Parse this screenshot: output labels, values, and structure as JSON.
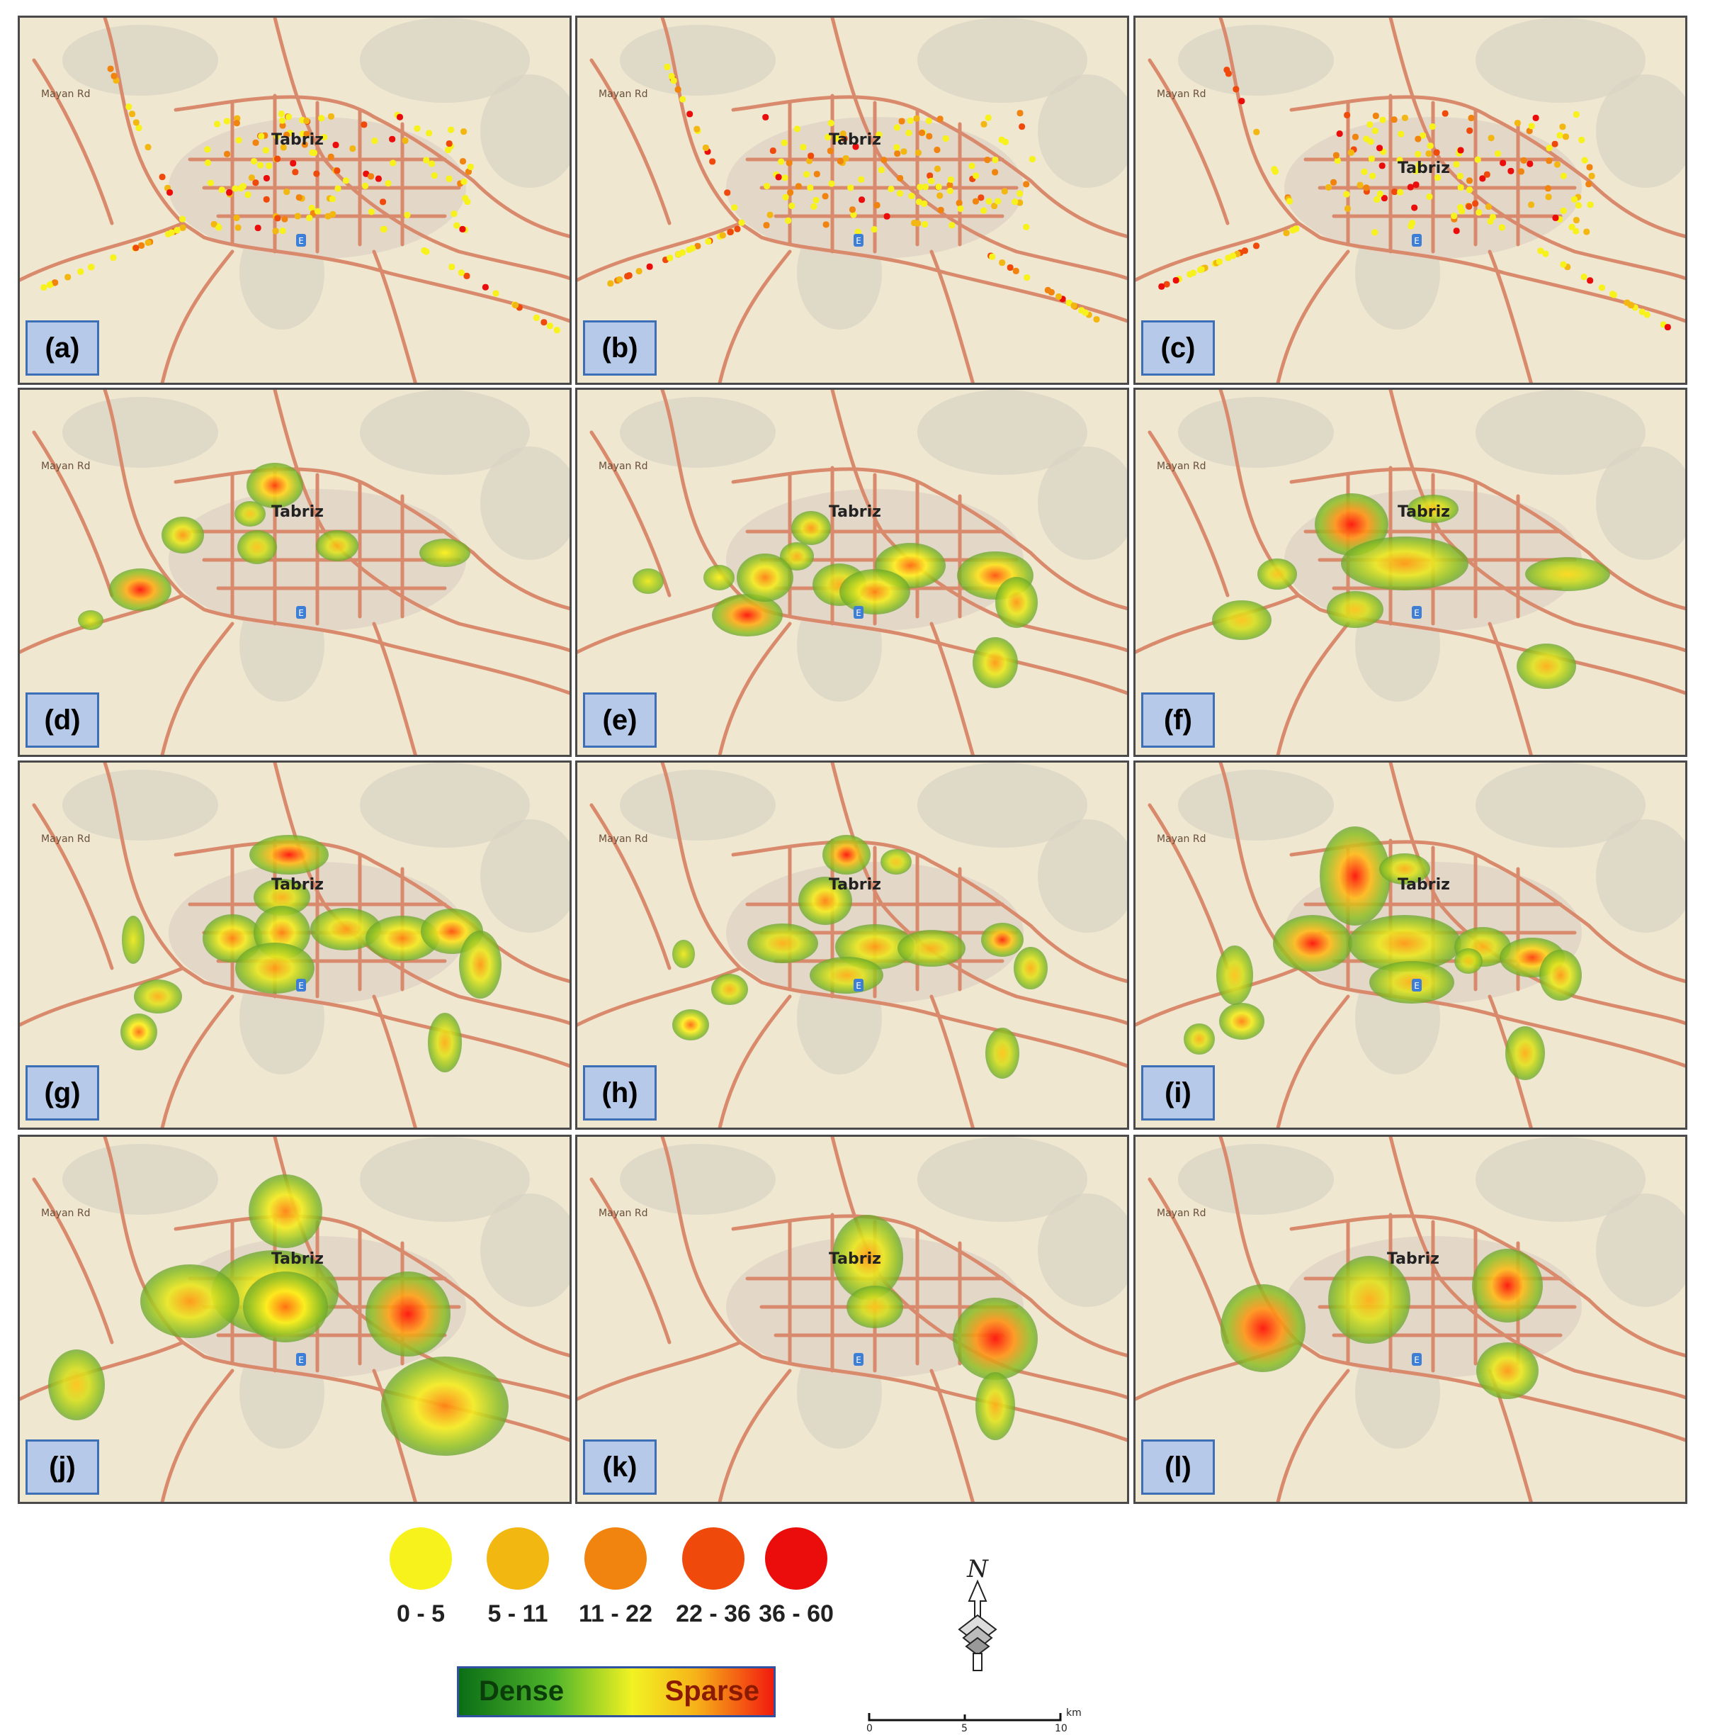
{
  "panels": [
    {
      "label": "(a)",
      "city": "Tabriz",
      "road": "Mayan Rd",
      "style": "points"
    },
    {
      "label": "(b)",
      "city": "Tabriz",
      "road": "Mayan Rd",
      "style": "points"
    },
    {
      "label": "(c)",
      "city": "Tabriz",
      "road": "Mayan Rd",
      "style": "points"
    },
    {
      "label": "(d)",
      "city": "Tabriz",
      "road": "Mayan Rd",
      "style": "heat"
    },
    {
      "label": "(e)",
      "city": "Tabriz",
      "road": "Mayan Rd",
      "style": "heat"
    },
    {
      "label": "(f)",
      "city": "Tabriz",
      "road": "Mayan Rd",
      "style": "heat"
    },
    {
      "label": "(g)",
      "city": "Tabriz",
      "road": "Mayan Rd",
      "style": "heat"
    },
    {
      "label": "(h)",
      "city": "Tabriz",
      "road": "Mayan Rd",
      "style": "heat"
    },
    {
      "label": "(i)",
      "city": "Tabriz",
      "road": "Mayan Rd",
      "style": "heat"
    },
    {
      "label": "(j)",
      "city": "Tabriz",
      "road": "Mayan Rd",
      "style": "heat"
    },
    {
      "label": "(k)",
      "city": "Tabriz",
      "road": "Mayan Rd",
      "style": "heat"
    },
    {
      "label": "(l)",
      "city": "Tabriz",
      "road": "Mayan Rd",
      "style": "heat"
    }
  ],
  "legend": {
    "classes": [
      {
        "label": "0 - 5",
        "color": "#f7f21c"
      },
      {
        "label": "5 - 11",
        "color": "#f3b712"
      },
      {
        "label": "11 - 22",
        "color": "#f0840f"
      },
      {
        "label": "22 - 36",
        "color": "#ef4a0c"
      },
      {
        "label": "36 - 60",
        "color": "#ea0d0b"
      }
    ],
    "ramp_low": "Dense",
    "ramp_high": "Sparse",
    "north": "N",
    "scale_ticks": [
      "0",
      "5",
      "10"
    ],
    "scale_unit": "km"
  },
  "colors": {
    "road": "#d98a6c",
    "terrain": "#efe7cf",
    "urban": "#e3d7c8"
  },
  "panel_symbol": "E"
}
